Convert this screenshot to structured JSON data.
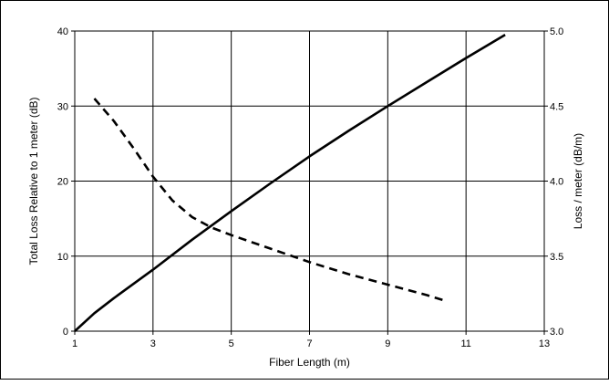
{
  "chart_data": {
    "type": "line",
    "title": "",
    "xlabel": "Fiber Length (m)",
    "ylabel": "Total Loss Relative to 1 meter (dB)",
    "y2label": "Loss / meter (dB/m)",
    "xlim": [
      1,
      13
    ],
    "ylim": [
      0,
      40
    ],
    "y2lim": [
      3.0,
      5.0
    ],
    "xticks": [
      "1",
      "3",
      "5",
      "7",
      "9",
      "11",
      "13"
    ],
    "yticks": [
      "0",
      "10",
      "20",
      "30",
      "40"
    ],
    "y2ticks": [
      "3.0",
      "3.5",
      "4.0",
      "4.5",
      "5.0"
    ],
    "grid": true,
    "series": [
      {
        "axis": "left",
        "style": "solid",
        "color": "#000000",
        "x": [
          1,
          1.5,
          2,
          3,
          4,
          5,
          6,
          7,
          8,
          9,
          10,
          11,
          12
        ],
        "y": [
          0,
          2.4,
          4.4,
          8.2,
          12.2,
          16.0,
          19.7,
          23.3,
          26.7,
          30.0,
          33.2,
          36.4,
          39.5
        ]
      },
      {
        "axis": "right",
        "style": "dashed",
        "color": "#000000",
        "x": [
          1.5,
          2,
          2.5,
          3,
          3.5,
          4,
          4.5,
          5,
          6,
          7,
          8,
          9,
          10,
          10.5
        ],
        "y": [
          4.55,
          4.4,
          4.22,
          4.03,
          3.87,
          3.76,
          3.69,
          3.64,
          3.55,
          3.46,
          3.38,
          3.31,
          3.24,
          3.2
        ]
      }
    ]
  }
}
